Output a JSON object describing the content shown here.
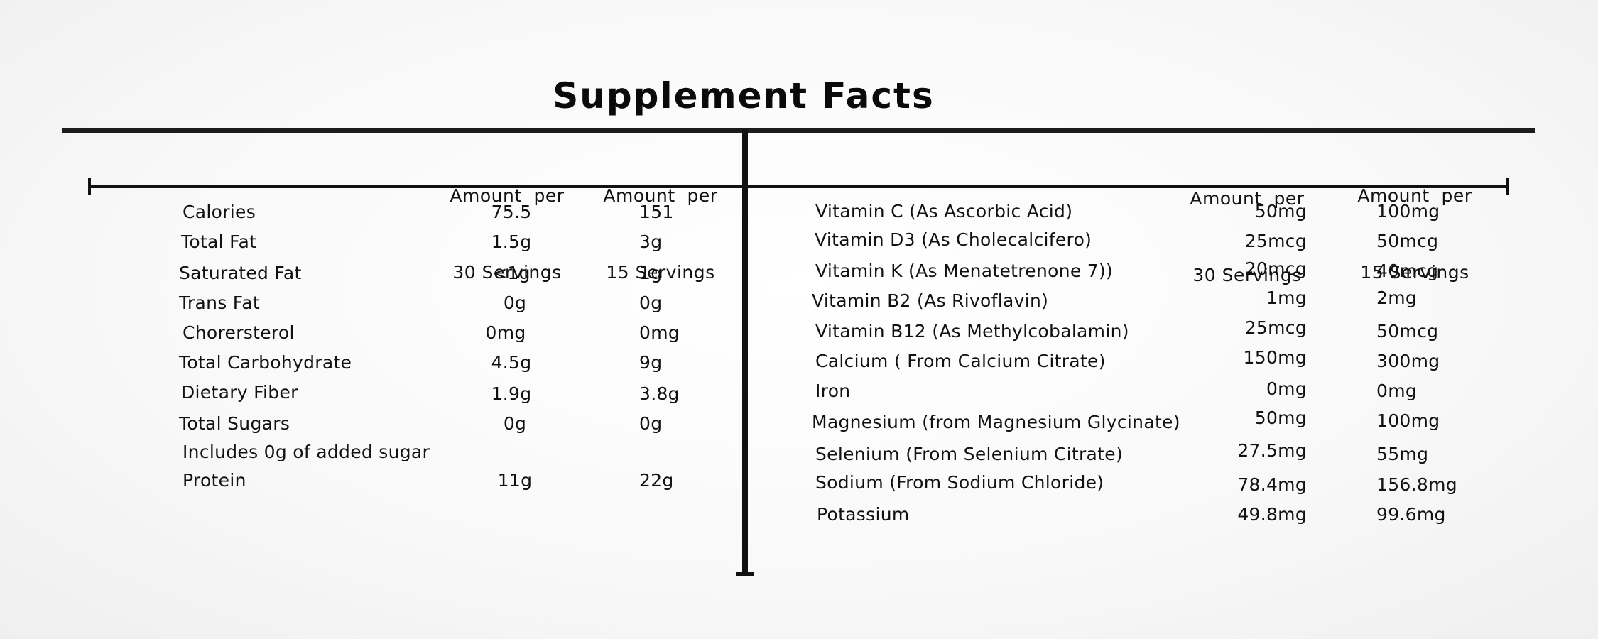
{
  "title": "Supplement Facts",
  "left_panel": {
    "headers": [
      {
        "line1": "Amount  per",
        "line2": "30 Servings"
      },
      {
        "line1": "Amount  per",
        "line2": "15 Servings"
      }
    ],
    "rows": [
      {
        "name": "Calories",
        "per30": "75.5",
        "per15": "151"
      },
      {
        "name": "Total Fat",
        "per30": "1.5g",
        "per15": "3g"
      },
      {
        "name": "Saturated Fat",
        "per30": "<1g",
        "per15": "1g"
      },
      {
        "name": "Trans Fat",
        "per30": "0g",
        "per15": "0g"
      },
      {
        "name": "Chorersterol",
        "per30": "0mg",
        "per15": "0mg"
      },
      {
        "name": "Total Carbohydrate",
        "per30": "4.5g",
        "per15": "9g"
      },
      {
        "name": "Dietary Fiber",
        "per30": "1.9g",
        "per15": "3.8g"
      },
      {
        "name": "Total Sugars",
        "per30": "0g",
        "per15": "0g"
      },
      {
        "name": "Includes 0g of added sugar",
        "per30": "",
        "per15": ""
      },
      {
        "name": "Protein",
        "per30": "11g",
        "per15": "22g"
      }
    ]
  },
  "right_panel": {
    "headers": [
      {
        "line1": "Amount  per",
        "line2": "30 Servings"
      },
      {
        "line1": "Amount  per",
        "line2": "15 Servings"
      }
    ],
    "rows": [
      {
        "name": "Vitamin C (As Ascorbic Acid)",
        "per30": "50mg",
        "per15": "100mg"
      },
      {
        "name": "Vitamin D3 (As Cholecalcifero)",
        "per30": "25mcg",
        "per15": "50mcg"
      },
      {
        "name": "Vitamin K (As Menatetrenone 7))",
        "per30": "20mcg",
        "per15": "40mcg"
      },
      {
        "name": "Vitamin B2 (As Rivoflavin)",
        "per30": "1mg",
        "per15": "2mg"
      },
      {
        "name": "Vitamin B12 (As Methylcobalamin)",
        "per30": "25mcg",
        "per15": "50mcg"
      },
      {
        "name": "Calcium ( From  Calcium  Citrate)",
        "per30": "150mg",
        "per15": "300mg"
      },
      {
        "name": "Iron",
        "per30": "0mg",
        "per15": "0mg"
      },
      {
        "name": "Magnesium (from Magnesium Glycinate)",
        "per30": "50mg",
        "per15": "100mg"
      },
      {
        "name": "Selenium (From Selenium Citrate)",
        "per30": "27.5mg",
        "per15": "55mg"
      },
      {
        "name": "Sodium  (From Sodium Chloride)",
        "per30": "78.4mg",
        "per15": "156.8mg"
      },
      {
        "name": "Potassium",
        "per30": "49.8mg",
        "per15": "99.6mg"
      }
    ]
  }
}
